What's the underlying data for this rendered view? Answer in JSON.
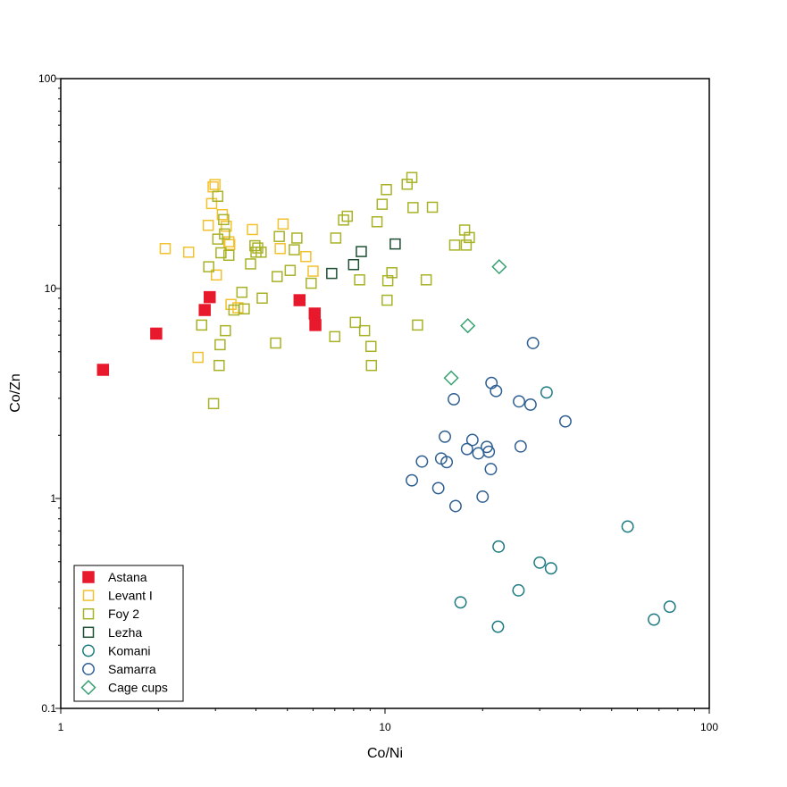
{
  "chart_data": {
    "type": "scatter",
    "xlabel": "Co/Ni",
    "ylabel": "Co/Zn",
    "xscale": "log",
    "yscale": "log",
    "xlim": [
      1,
      100
    ],
    "ylim": [
      0.1,
      100
    ],
    "xticks": [
      "1",
      "10",
      "100"
    ],
    "yticks": [
      "0.1",
      "1",
      "10",
      "100"
    ],
    "grid": false,
    "legend_position": "bottom-left",
    "series": [
      {
        "name": "Astana",
        "marker": "square",
        "filled": true,
        "color": "#e8192c",
        "points": [
          [
            1.35,
            4.1
          ],
          [
            1.97,
            6.1
          ],
          [
            2.78,
            7.9
          ],
          [
            2.88,
            9.1
          ],
          [
            5.45,
            8.8
          ],
          [
            6.07,
            7.6
          ],
          [
            6.1,
            6.7
          ]
        ]
      },
      {
        "name": "Levant I",
        "marker": "square",
        "filled": false,
        "color": "#f2c12e",
        "points": [
          [
            2.1,
            15.5
          ],
          [
            2.48,
            14.9
          ],
          [
            2.65,
            4.7
          ],
          [
            2.85,
            20
          ],
          [
            2.92,
            25.4
          ],
          [
            2.95,
            30.5
          ],
          [
            2.99,
            31.3
          ],
          [
            3.02,
            11.6
          ],
          [
            3.15,
            22.5
          ],
          [
            3.24,
            19.8
          ],
          [
            3.3,
            16.7
          ],
          [
            3.32,
            16.2
          ],
          [
            3.35,
            8.4
          ],
          [
            3.52,
            8.1
          ],
          [
            3.9,
            19.1
          ],
          [
            4.75,
            15.5
          ],
          [
            4.85,
            20.3
          ],
          [
            5.7,
            14.2
          ],
          [
            6.0,
            12.1
          ]
        ]
      },
      {
        "name": "Foy 2",
        "marker": "square",
        "filled": false,
        "color": "#a8b227",
        "points": [
          [
            2.72,
            6.7
          ],
          [
            2.86,
            12.7
          ],
          [
            2.96,
            2.83
          ],
          [
            3.05,
            27.5
          ],
          [
            3.05,
            17.2
          ],
          [
            3.08,
            4.3
          ],
          [
            3.1,
            5.4
          ],
          [
            3.12,
            14.8
          ],
          [
            3.18,
            21.3
          ],
          [
            3.2,
            18.2
          ],
          [
            3.22,
            6.3
          ],
          [
            3.3,
            14.4
          ],
          [
            3.42,
            7.9
          ],
          [
            3.62,
            9.6
          ],
          [
            3.68,
            8.0
          ],
          [
            3.85,
            13.1
          ],
          [
            3.97,
            16.0
          ],
          [
            4.0,
            14.9
          ],
          [
            4.05,
            15.6
          ],
          [
            4.15,
            14.9
          ],
          [
            4.18,
            9.0
          ],
          [
            4.6,
            5.5
          ],
          [
            4.65,
            11.4
          ],
          [
            4.72,
            17.7
          ],
          [
            5.1,
            12.2
          ],
          [
            5.25,
            15.3
          ],
          [
            5.35,
            17.4
          ],
          [
            5.92,
            10.6
          ],
          [
            7.0,
            5.9
          ],
          [
            7.05,
            17.4
          ],
          [
            7.45,
            21.2
          ],
          [
            7.65,
            22.1
          ],
          [
            8.1,
            6.9
          ],
          [
            8.35,
            11.0
          ],
          [
            8.65,
            6.3
          ],
          [
            9.05,
            5.3
          ],
          [
            9.08,
            4.3
          ],
          [
            9.45,
            20.8
          ],
          [
            9.8,
            25.2
          ],
          [
            10.1,
            29.6
          ],
          [
            10.15,
            8.8
          ],
          [
            10.2,
            10.9
          ],
          [
            10.5,
            11.9
          ],
          [
            11.7,
            31.4
          ],
          [
            12.1,
            33.8
          ],
          [
            12.2,
            24.3
          ],
          [
            12.6,
            6.7
          ],
          [
            13.4,
            11.0
          ],
          [
            14.0,
            24.4
          ],
          [
            16.4,
            16.1
          ],
          [
            17.6,
            19.0
          ],
          [
            17.8,
            16.1
          ],
          [
            18.2,
            17.5
          ]
        ]
      },
      {
        "name": "Lezha",
        "marker": "square",
        "filled": false,
        "color": "#1e4f34",
        "points": [
          [
            6.85,
            11.8
          ],
          [
            8.0,
            13.0
          ],
          [
            8.45,
            15.0
          ],
          [
            10.75,
            16.3
          ]
        ]
      },
      {
        "name": "Komani",
        "marker": "circle",
        "filled": false,
        "color": "#1b7a80",
        "points": [
          [
            17.1,
            0.32
          ],
          [
            22.4,
            0.59
          ],
          [
            22.3,
            0.245
          ],
          [
            25.8,
            0.365
          ],
          [
            30.0,
            0.495
          ],
          [
            31.5,
            3.2
          ],
          [
            32.5,
            0.465
          ],
          [
            56.0,
            0.735
          ],
          [
            67.5,
            0.265
          ],
          [
            75.5,
            0.305
          ]
        ]
      },
      {
        "name": "Samarra",
        "marker": "circle",
        "filled": false,
        "color": "#2e5f92",
        "points": [
          [
            12.1,
            1.22
          ],
          [
            13.0,
            1.5
          ],
          [
            14.6,
            1.12
          ],
          [
            14.9,
            1.55
          ],
          [
            15.3,
            1.97
          ],
          [
            15.5,
            1.49
          ],
          [
            16.3,
            2.97
          ],
          [
            16.5,
            0.92
          ],
          [
            17.9,
            1.72
          ],
          [
            18.6,
            1.9
          ],
          [
            19.4,
            1.64
          ],
          [
            20.0,
            1.02
          ],
          [
            20.6,
            1.76
          ],
          [
            20.9,
            1.67
          ],
          [
            21.2,
            1.38
          ],
          [
            21.3,
            3.55
          ],
          [
            22.0,
            3.25
          ],
          [
            25.9,
            2.9
          ],
          [
            26.2,
            1.77
          ],
          [
            28.1,
            2.8
          ],
          [
            28.6,
            5.5
          ],
          [
            36.0,
            2.33
          ]
        ]
      },
      {
        "name": "Cage cups",
        "marker": "diamond",
        "filled": false,
        "color": "#35a070",
        "points": [
          [
            16.0,
            3.75
          ],
          [
            18.0,
            6.65
          ],
          [
            22.5,
            12.7
          ]
        ]
      }
    ]
  }
}
